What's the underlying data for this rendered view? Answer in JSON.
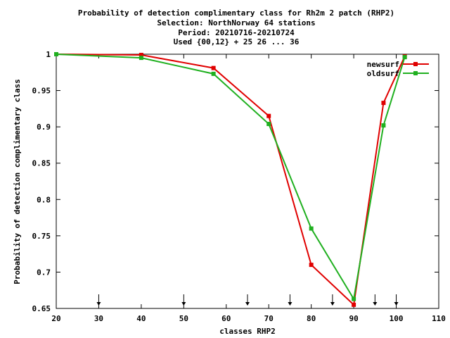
{
  "chart_data": {
    "type": "line",
    "title_lines": [
      "Probability of detection complimentary class  for Rh2m 2 patch (RHP2)",
      "Selection: NorthNorway     64 stations",
      "Period: 20210716-20210724",
      "Used {00,12} + 25 26 ... 36"
    ],
    "xlabel": "classes RHP2",
    "ylabel": "Probability of detection complimentary class",
    "xlim": [
      20,
      110
    ],
    "ylim": [
      0.65,
      1
    ],
    "xticks": [
      20,
      30,
      40,
      50,
      60,
      70,
      80,
      90,
      100,
      110
    ],
    "yticks": [
      0.65,
      0.7,
      0.75,
      0.8,
      0.85,
      0.9,
      0.95,
      1
    ],
    "ytick_labels": [
      "0.65",
      "0.7",
      "0.75",
      "0.8",
      "0.85",
      "0.9",
      "0.95",
      "1"
    ],
    "legend_position": "top-right",
    "arrows_x": [
      30,
      50,
      65,
      75,
      85,
      95,
      100
    ],
    "series": [
      {
        "name": "newsurf",
        "color": "#e00000",
        "x": [
          20,
          40,
          57,
          70,
          80,
          90,
          97,
          102
        ],
        "y": [
          1.0,
          0.999,
          0.981,
          0.915,
          0.71,
          0.655,
          0.933,
          0.997
        ]
      },
      {
        "name": "oldsurf",
        "color": "#20b020",
        "x": [
          20,
          40,
          57,
          70,
          80,
          90,
          97,
          102
        ],
        "y": [
          1.0,
          0.995,
          0.973,
          0.904,
          0.76,
          0.663,
          0.902,
          0.996
        ]
      }
    ]
  }
}
